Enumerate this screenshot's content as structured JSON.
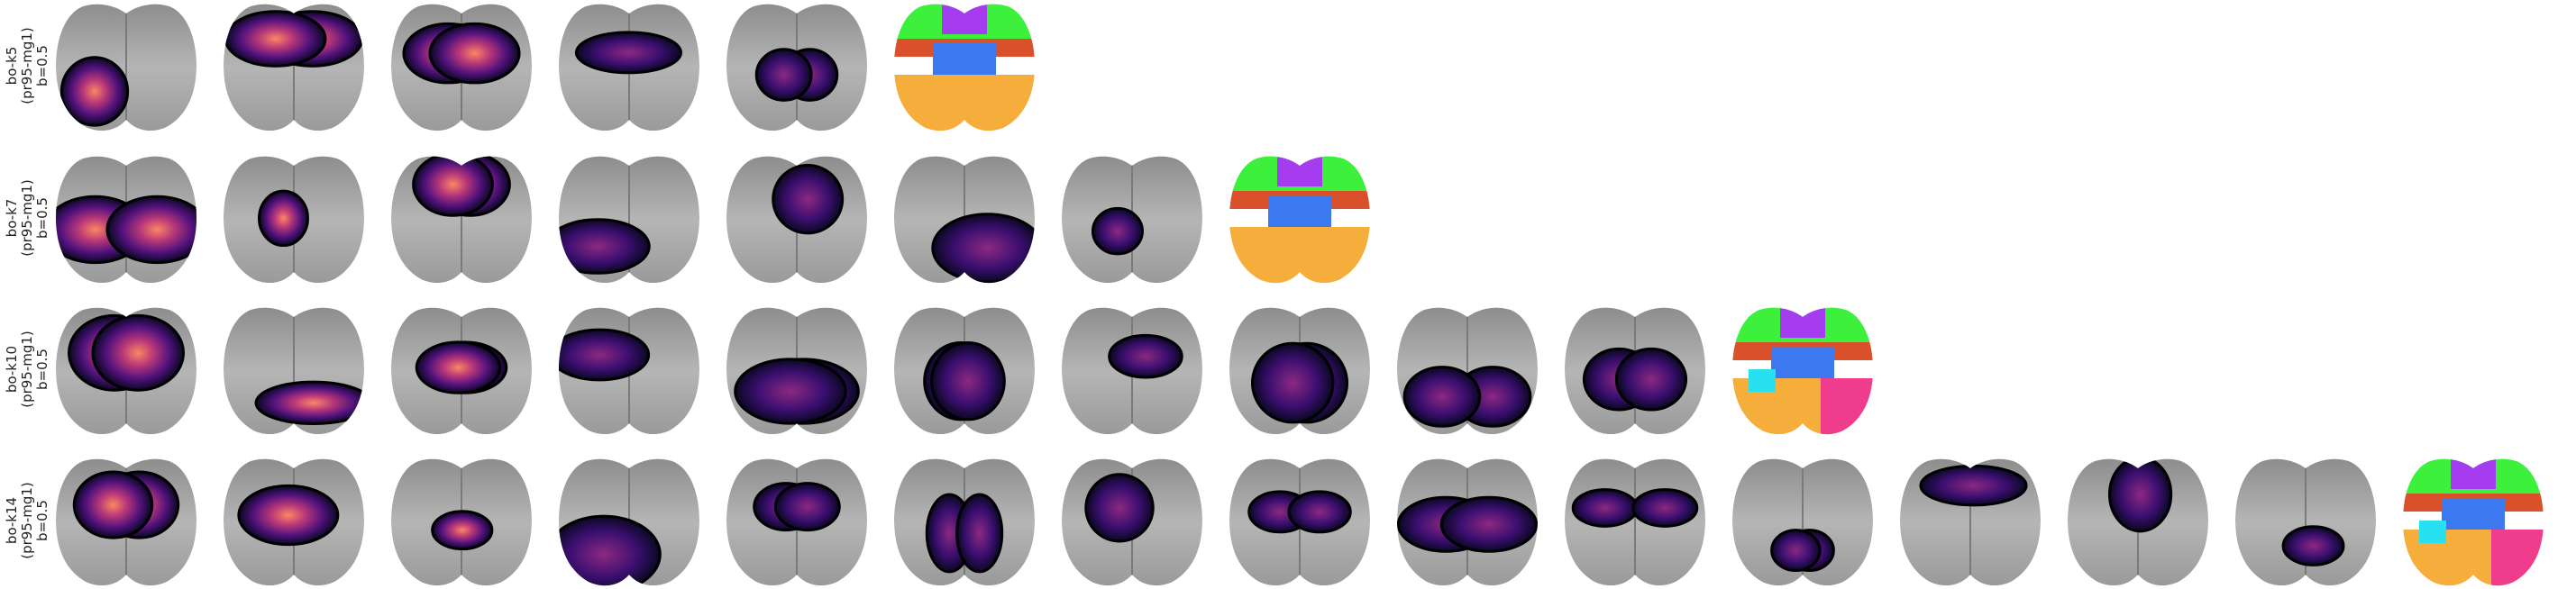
{
  "rows": [
    {
      "label": [
        "bo-k5",
        "(pr95-mg1)",
        "b=0.5"
      ]
    },
    {
      "label": [
        "bo-k7",
        "(pr95-mg1)",
        "b=0.5"
      ]
    },
    {
      "label": [
        "bo-k10",
        "(pr95-mg1)",
        "b=0.5"
      ]
    },
    {
      "label": [
        "bo-k14",
        "(pr95-mg1)",
        "b=0.5"
      ]
    }
  ]
}
